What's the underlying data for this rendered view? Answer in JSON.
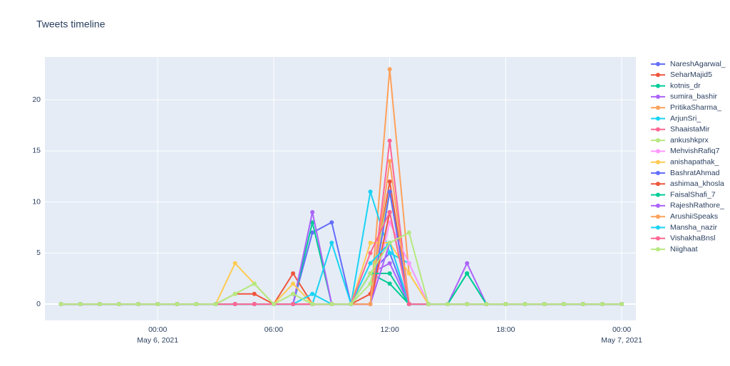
{
  "chart_data": {
    "type": "line",
    "title": "Tweets timeline",
    "x": [
      "2021-05-05T19:00",
      "2021-05-05T20:00",
      "2021-05-05T21:00",
      "2021-05-05T22:00",
      "2021-05-05T23:00",
      "2021-05-06T00:00",
      "2021-05-06T01:00",
      "2021-05-06T02:00",
      "2021-05-06T03:00",
      "2021-05-06T04:00",
      "2021-05-06T05:00",
      "2021-05-06T06:00",
      "2021-05-06T07:00",
      "2021-05-06T08:00",
      "2021-05-06T09:00",
      "2021-05-06T10:00",
      "2021-05-06T11:00",
      "2021-05-06T12:00",
      "2021-05-06T13:00",
      "2021-05-06T14:00",
      "2021-05-06T15:00",
      "2021-05-06T16:00",
      "2021-05-06T17:00",
      "2021-05-06T18:00",
      "2021-05-06T19:00",
      "2021-05-06T20:00",
      "2021-05-06T21:00",
      "2021-05-06T22:00",
      "2021-05-06T23:00",
      "2021-05-07T00:00"
    ],
    "xlim": [
      "2021-05-05T18:10",
      "2021-05-07T00:44"
    ],
    "xticks": [
      {
        "value": "2021-05-06T00:00",
        "label": "00:00\nMay 6, 2021"
      },
      {
        "value": "2021-05-06T06:00",
        "label": "06:00"
      },
      {
        "value": "2021-05-06T12:00",
        "label": "12:00"
      },
      {
        "value": "2021-05-06T18:00",
        "label": "18:00"
      },
      {
        "value": "2021-05-07T00:00",
        "label": "00:00\nMay 7, 2021"
      }
    ],
    "ylim": [
      -1.6,
      24.2
    ],
    "yticks": [
      0,
      5,
      10,
      15,
      20
    ],
    "grid": true,
    "series": [
      {
        "name": "NareshAgarwal_",
        "color": "#636efa",
        "values": [
          0,
          0,
          0,
          0,
          0,
          0,
          0,
          0,
          0,
          0,
          0,
          0,
          0,
          7,
          8,
          0,
          3,
          5,
          0,
          0,
          0,
          0,
          0,
          0,
          0,
          0,
          0,
          0,
          0,
          0
        ]
      },
      {
        "name": "SeharMajid5",
        "color": "#EF553B",
        "values": [
          0,
          0,
          0,
          0,
          0,
          0,
          0,
          0,
          0,
          1,
          1,
          0,
          3,
          0,
          0,
          0,
          1,
          12,
          0,
          0,
          0,
          0,
          0,
          0,
          0,
          0,
          0,
          0,
          0,
          0
        ]
      },
      {
        "name": "kotnis_dr",
        "color": "#00cc96",
        "values": [
          0,
          0,
          0,
          0,
          0,
          0,
          0,
          0,
          0,
          0,
          0,
          0,
          0,
          8,
          0,
          0,
          3,
          2,
          0,
          0,
          0,
          3,
          0,
          0,
          0,
          0,
          0,
          0,
          0,
          0
        ]
      },
      {
        "name": "sumira_bashir",
        "color": "#ab63fa",
        "values": [
          0,
          0,
          0,
          0,
          0,
          0,
          0,
          0,
          0,
          0,
          0,
          0,
          0,
          9,
          0,
          0,
          3,
          4,
          0,
          0,
          0,
          4,
          0,
          0,
          0,
          0,
          0,
          0,
          0,
          0
        ]
      },
      {
        "name": "PritikaSharma_",
        "color": "#FFA15A",
        "values": [
          0,
          0,
          0,
          0,
          0,
          0,
          0,
          0,
          0,
          0,
          0,
          0,
          0,
          0,
          0,
          0,
          0,
          23,
          3,
          0,
          0,
          0,
          0,
          0,
          0,
          0,
          0,
          0,
          0,
          0
        ]
      },
      {
        "name": "ArjunSri_",
        "color": "#19d3f3",
        "values": [
          0,
          0,
          0,
          0,
          0,
          0,
          0,
          0,
          0,
          0,
          0,
          0,
          0,
          0,
          6,
          0,
          11,
          5,
          4,
          0,
          0,
          0,
          0,
          0,
          0,
          0,
          0,
          0,
          0,
          0
        ]
      },
      {
        "name": "ShaaistaMir",
        "color": "#FF6692",
        "values": [
          0,
          0,
          0,
          0,
          0,
          0,
          0,
          0,
          0,
          0,
          0,
          0,
          0,
          0,
          0,
          0,
          0,
          16,
          0,
          0,
          0,
          0,
          0,
          0,
          0,
          0,
          0,
          0,
          0,
          0
        ]
      },
      {
        "name": "ankushkprx",
        "color": "#B6E880",
        "values": [
          0,
          0,
          0,
          0,
          0,
          0,
          0,
          0,
          0,
          1,
          2,
          0,
          1,
          0,
          0,
          0,
          2,
          11,
          0,
          0,
          0,
          0,
          0,
          0,
          0,
          0,
          0,
          0,
          0,
          0
        ]
      },
      {
        "name": "MehvishRafiq7",
        "color": "#FF97FF",
        "values": [
          0,
          0,
          0,
          0,
          0,
          0,
          0,
          0,
          0,
          0,
          0,
          0,
          0,
          0,
          0,
          0,
          0,
          8,
          4,
          0,
          0,
          0,
          0,
          0,
          0,
          0,
          0,
          0,
          0,
          0
        ]
      },
      {
        "name": "anishapathak_",
        "color": "#FECB52",
        "values": [
          0,
          0,
          0,
          0,
          0,
          0,
          0,
          0,
          0,
          4,
          2,
          0,
          2,
          0,
          0,
          0,
          6,
          6,
          3,
          0,
          0,
          0,
          0,
          0,
          0,
          0,
          0,
          0,
          0,
          0
        ]
      },
      {
        "name": "BashratAhmad",
        "color": "#636efa",
        "values": [
          0,
          0,
          0,
          0,
          0,
          0,
          0,
          0,
          0,
          0,
          0,
          0,
          0,
          0,
          0,
          0,
          0,
          11,
          0,
          0,
          0,
          0,
          0,
          0,
          0,
          0,
          0,
          0,
          0,
          0
        ]
      },
      {
        "name": "ashimaa_khosla",
        "color": "#EF553B",
        "values": [
          0,
          0,
          0,
          0,
          0,
          0,
          0,
          0,
          0,
          0,
          0,
          0,
          0,
          0,
          0,
          0,
          0,
          9,
          0,
          0,
          0,
          0,
          0,
          0,
          0,
          0,
          0,
          0,
          0,
          0
        ]
      },
      {
        "name": "FaisalShafi_7",
        "color": "#00cc96",
        "values": [
          0,
          0,
          0,
          0,
          0,
          0,
          0,
          0,
          0,
          0,
          0,
          0,
          0,
          0,
          0,
          0,
          3,
          3,
          0,
          0,
          0,
          3,
          0,
          0,
          0,
          0,
          0,
          0,
          0,
          0
        ]
      },
      {
        "name": "RajeshRathore_",
        "color": "#ab63fa",
        "values": [
          0,
          0,
          0,
          0,
          0,
          0,
          0,
          0,
          0,
          0,
          0,
          0,
          0,
          0,
          0,
          0,
          0,
          6,
          0,
          0,
          0,
          0,
          0,
          0,
          0,
          0,
          0,
          0,
          0,
          0
        ]
      },
      {
        "name": "ArushiiSpeaks",
        "color": "#FFA15A",
        "values": [
          0,
          0,
          0,
          0,
          0,
          0,
          0,
          0,
          0,
          0,
          0,
          0,
          0,
          0,
          0,
          0,
          0,
          14,
          0,
          0,
          0,
          0,
          0,
          0,
          0,
          0,
          0,
          0,
          0,
          0
        ]
      },
      {
        "name": "Mansha_nazir",
        "color": "#19d3f3",
        "values": [
          0,
          0,
          0,
          0,
          0,
          0,
          0,
          0,
          0,
          0,
          0,
          0,
          0,
          1,
          0,
          0,
          4,
          6,
          0,
          0,
          0,
          0,
          0,
          0,
          0,
          0,
          0,
          0,
          0,
          0
        ]
      },
      {
        "name": "VishakhaBnsl",
        "color": "#FF6692",
        "values": [
          0,
          0,
          0,
          0,
          0,
          0,
          0,
          0,
          0,
          0,
          0,
          0,
          0,
          0,
          0,
          0,
          5,
          9,
          0,
          0,
          0,
          0,
          0,
          0,
          0,
          0,
          0,
          0,
          0,
          0
        ]
      },
      {
        "name": "Niighaat",
        "color": "#B6E880",
        "values": [
          0,
          0,
          0,
          0,
          0,
          0,
          0,
          0,
          0,
          1,
          2,
          0,
          1,
          0,
          0,
          0,
          3,
          6,
          7,
          0,
          0,
          0,
          0,
          0,
          0,
          0,
          0,
          0,
          0,
          0
        ]
      }
    ]
  }
}
